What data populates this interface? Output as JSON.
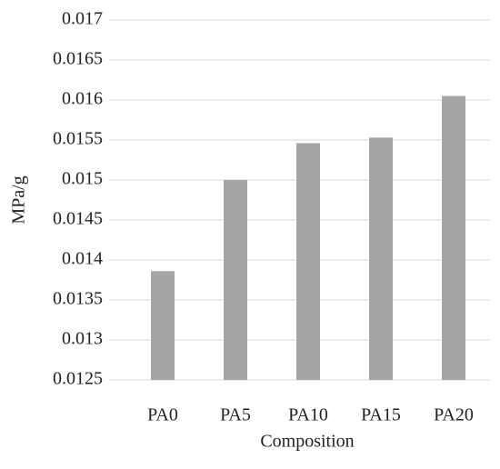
{
  "chart_data": {
    "type": "bar",
    "categories": [
      "PA0",
      "PA5",
      "PA10",
      "PA15",
      "PA20"
    ],
    "values": [
      0.01386,
      0.015,
      0.01546,
      0.01553,
      0.01605
    ],
    "color": "#a5a5a5",
    "y_label": "MPa/g",
    "x_label": "Composition",
    "ylim": [
      0.0125,
      0.017
    ],
    "yticks": [
      0.0125,
      0.013,
      0.0135,
      0.014,
      0.0145,
      0.015,
      0.0155,
      0.016,
      0.0165,
      0.017
    ],
    "grid": true
  }
}
